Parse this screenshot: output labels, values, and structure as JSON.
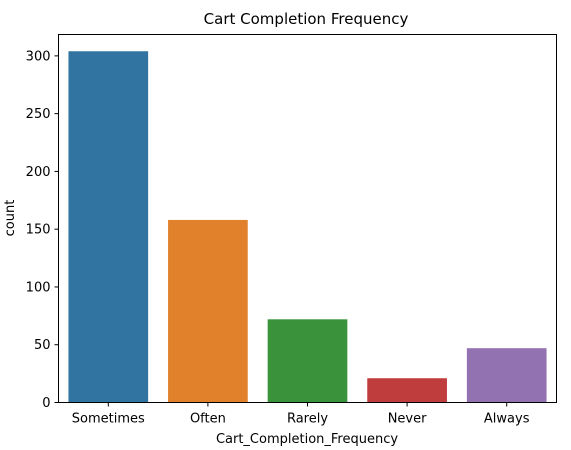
{
  "chart_data": {
    "type": "bar",
    "title": "Cart Completion Frequency",
    "xlabel": "Cart_Completion_Frequency",
    "ylabel": "count",
    "categories": [
      "Sometimes",
      "Often",
      "Rarely",
      "Never",
      "Always"
    ],
    "values": [
      304,
      158,
      72,
      21,
      47
    ],
    "colors": [
      "#3274a1",
      "#e1812c",
      "#3a923a",
      "#c03d3e",
      "#9372b2"
    ],
    "ylim": [
      0,
      318.5
    ],
    "yticks": [
      0,
      50,
      100,
      150,
      200,
      250,
      300
    ],
    "grid": false,
    "legend": "none"
  }
}
